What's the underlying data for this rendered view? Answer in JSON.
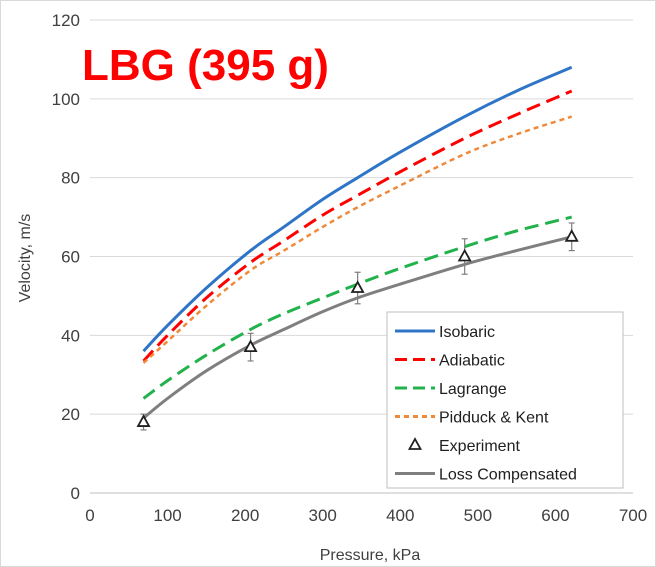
{
  "chart_data": {
    "type": "line",
    "title": "LBG (395 g)",
    "xlabel": "Pressure, kPa",
    "ylabel": "Velocity, m/s",
    "xlim": [
      0,
      700
    ],
    "ylim": [
      0,
      120
    ],
    "xticks": [
      0,
      100,
      200,
      300,
      400,
      500,
      600,
      700
    ],
    "yticks": [
      0,
      20,
      40,
      60,
      80,
      100,
      120
    ],
    "grid": "horizontal",
    "legend_position": "bottom-right",
    "series": [
      {
        "name": "Isobaric",
        "style": "solid",
        "color": "#2f75c7",
        "x": [
          69,
          100,
          150,
          207,
          250,
          300,
          345,
          400,
          483,
          550,
          621
        ],
        "y": [
          36,
          42.5,
          52,
          61.5,
          67.5,
          74.5,
          80,
          86.5,
          95.5,
          102,
          108
        ]
      },
      {
        "name": "Adiabatic",
        "style": "dashed",
        "color": "#ff0000",
        "x": [
          69,
          100,
          150,
          207,
          250,
          300,
          345,
          400,
          483,
          550,
          621
        ],
        "y": [
          33.5,
          40,
          49.5,
          58.5,
          64,
          70.5,
          75.5,
          81.5,
          90,
          96,
          102
        ]
      },
      {
        "name": "Lagrange",
        "style": "dashed",
        "color": "#22b24c",
        "x": [
          69,
          100,
          150,
          207,
          250,
          300,
          345,
          400,
          483,
          550,
          621
        ],
        "y": [
          24,
          28.5,
          35,
          41.5,
          45.5,
          49.5,
          53,
          57,
          62.5,
          66.5,
          70
        ]
      },
      {
        "name": "Pidduck & Kent",
        "style": "dotted",
        "color": "#f0893a",
        "x": [
          69,
          100,
          150,
          207,
          250,
          300,
          345,
          400,
          483,
          550,
          621
        ],
        "y": [
          33,
          38.5,
          47.5,
          56.5,
          61.5,
          67.5,
          72.5,
          78,
          86,
          91,
          95.5
        ]
      },
      {
        "name": "Experiment",
        "style": "markers",
        "color": "#202020",
        "x": [
          69,
          207,
          345,
          483,
          621
        ],
        "y": [
          18,
          37,
          52,
          60,
          65
        ],
        "err": [
          2,
          3.5,
          4,
          4.5,
          3.5
        ]
      },
      {
        "name": "Loss Compensated",
        "style": "solid",
        "color": "#7f7f7f",
        "x": [
          69,
          100,
          150,
          207,
          250,
          300,
          345,
          400,
          483,
          550,
          621
        ],
        "y": [
          19,
          24,
          31,
          37.5,
          41.5,
          46,
          49.5,
          53,
          58,
          61.5,
          65
        ]
      }
    ]
  }
}
